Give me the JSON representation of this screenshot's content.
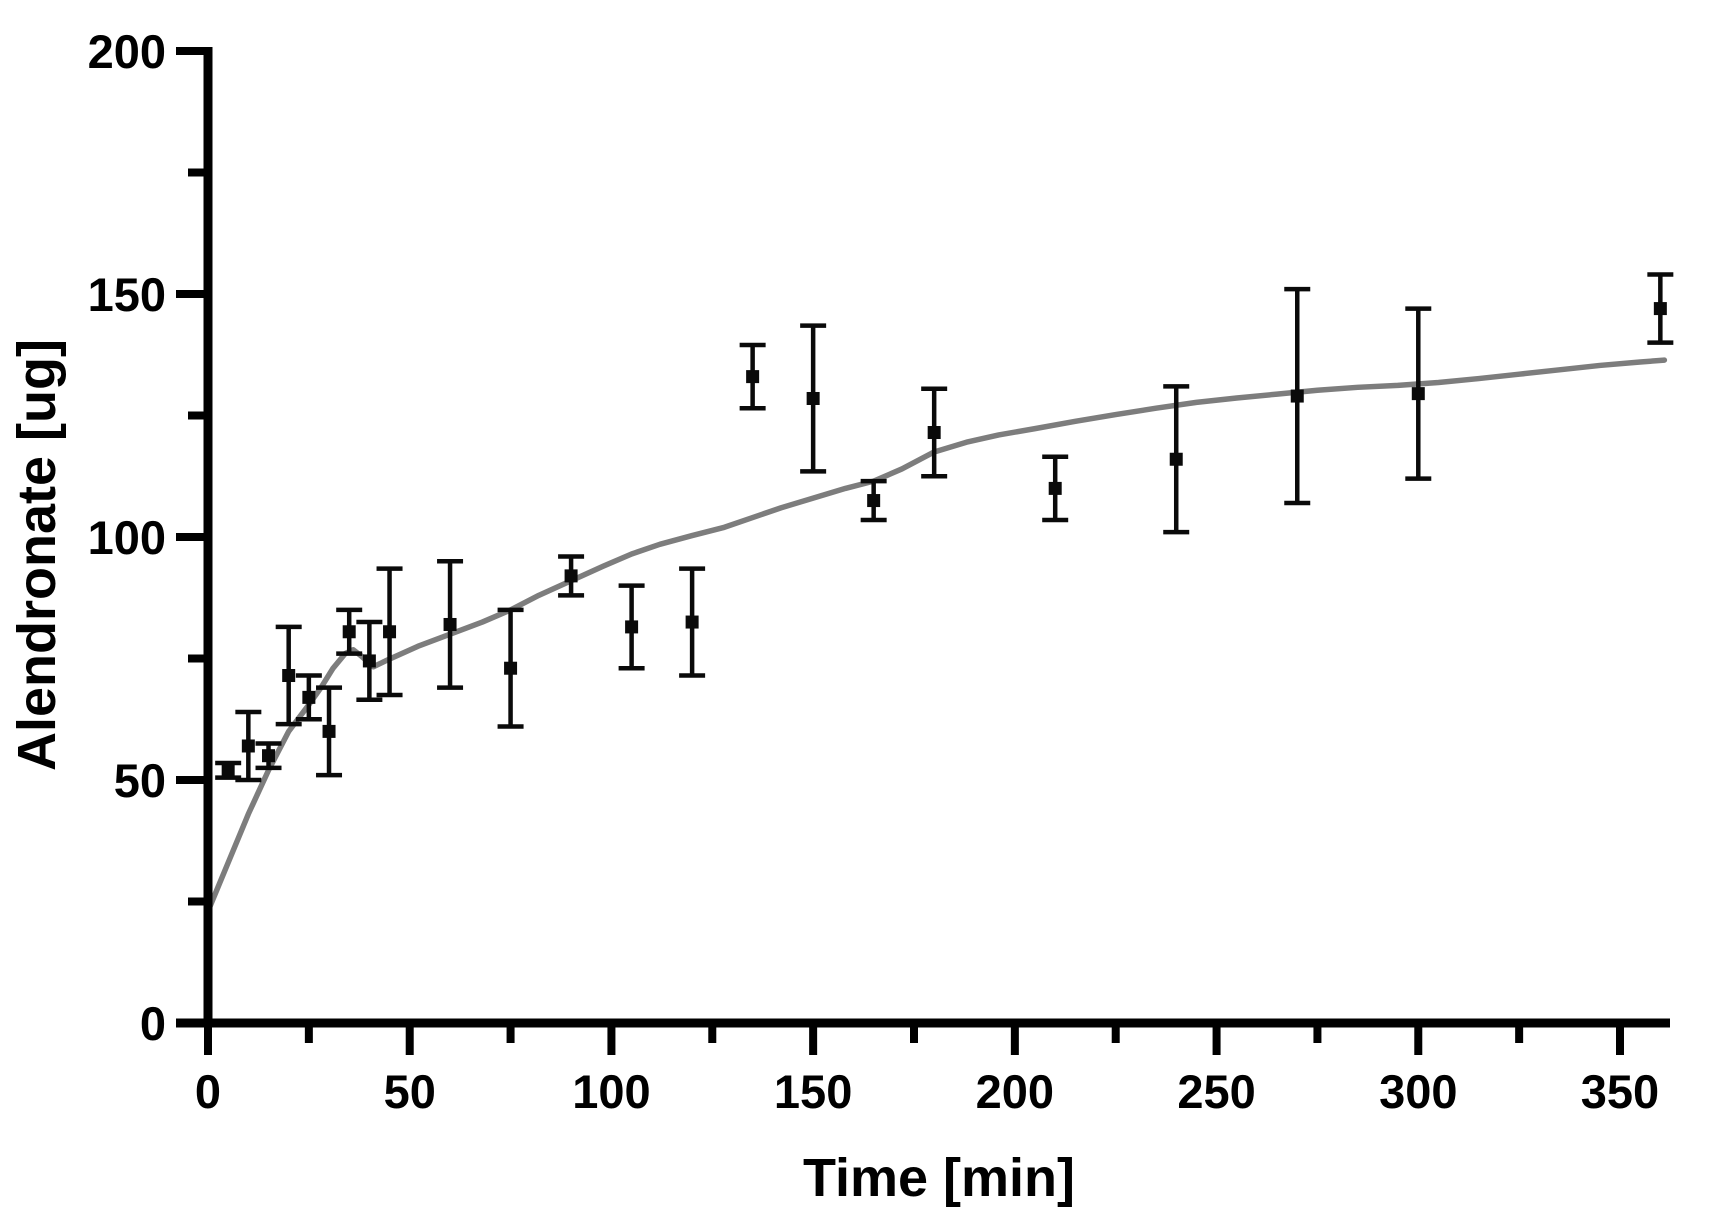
{
  "figure": {
    "background_color": "#ffffff",
    "axis_color": "#000000",
    "curve_color": "#7d7d7d",
    "marker_color": "#0a0a0a"
  },
  "chart_data": {
    "type": "scatter",
    "title": "",
    "xlabel": "Time [min]",
    "ylabel": "Alendronate [ug]",
    "xlim": [
      0,
      363
    ],
    "ylim": [
      0,
      200
    ],
    "x_major_ticks": [
      0,
      50,
      100,
      150,
      200,
      250,
      300,
      350
    ],
    "x_minor_ticks": [
      25,
      75,
      125,
      175,
      225,
      275,
      325
    ],
    "y_major_ticks": [
      0,
      50,
      100,
      150,
      200
    ],
    "y_minor_ticks": [
      25,
      75,
      125,
      175
    ],
    "grid": false,
    "legend_position": "none",
    "series": [
      {
        "name": "measured-points",
        "style": "scatter-with-error-bars",
        "x": [
          5,
          10,
          15,
          20,
          25,
          30,
          35,
          40,
          45,
          60,
          75,
          90,
          105,
          120,
          135,
          150,
          165,
          180,
          210,
          240,
          270,
          300,
          360
        ],
        "y": [
          52,
          57,
          55,
          71.5,
          67,
          60,
          80.5,
          74.5,
          80.5,
          82,
          73,
          92,
          81.5,
          82.5,
          133,
          128.5,
          107.5,
          121.5,
          110,
          116,
          129,
          129.5,
          147
        ],
        "yerr": [
          1.5,
          7,
          2.5,
          10,
          4.5,
          9,
          4.5,
          8,
          13,
          13,
          12,
          4,
          8.5,
          11,
          6.5,
          15,
          4,
          9,
          6.5,
          15,
          22,
          17.5,
          7
        ]
      },
      {
        "name": "fit-curve",
        "style": "line",
        "points": [
          [
            0,
            23
          ],
          [
            5,
            33
          ],
          [
            10,
            43
          ],
          [
            15,
            52
          ],
          [
            20,
            60
          ],
          [
            25,
            65.5
          ],
          [
            28,
            69
          ],
          [
            31,
            73
          ],
          [
            34,
            76
          ],
          [
            36,
            76.8
          ],
          [
            38,
            75.5
          ],
          [
            41,
            73.3
          ],
          [
            44,
            74.5
          ],
          [
            48,
            76
          ],
          [
            52,
            77.5
          ],
          [
            60,
            80
          ],
          [
            68,
            82.5
          ],
          [
            75,
            85
          ],
          [
            82,
            88
          ],
          [
            90,
            91
          ],
          [
            98,
            94
          ],
          [
            105,
            96.5
          ],
          [
            112,
            98.5
          ],
          [
            120,
            100.3
          ],
          [
            128,
            102
          ],
          [
            135,
            104
          ],
          [
            142,
            106
          ],
          [
            150,
            108
          ],
          [
            158,
            110
          ],
          [
            165,
            111.5
          ],
          [
            172,
            114
          ],
          [
            180,
            117.5
          ],
          [
            188,
            119.5
          ],
          [
            196,
            121
          ],
          [
            205,
            122.3
          ],
          [
            215,
            123.8
          ],
          [
            225,
            125.2
          ],
          [
            235,
            126.5
          ],
          [
            245,
            127.7
          ],
          [
            255,
            128.6
          ],
          [
            265,
            129.4
          ],
          [
            275,
            130.2
          ],
          [
            285,
            130.8
          ],
          [
            295,
            131.2
          ],
          [
            305,
            131.8
          ],
          [
            315,
            132.6
          ],
          [
            325,
            133.5
          ],
          [
            335,
            134.4
          ],
          [
            345,
            135.3
          ],
          [
            355,
            136
          ],
          [
            361,
            136.4
          ]
        ]
      }
    ]
  }
}
